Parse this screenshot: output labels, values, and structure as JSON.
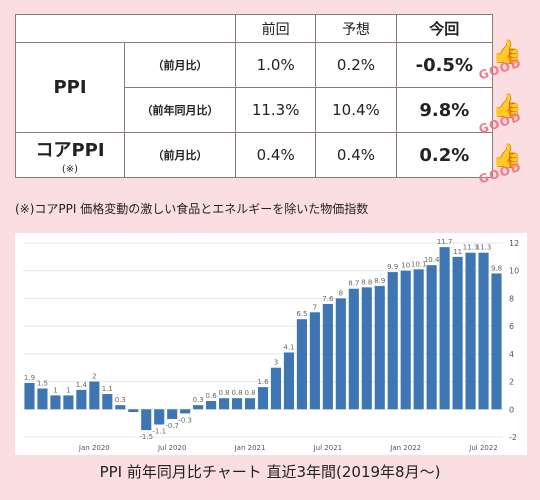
{
  "table": {
    "headers": [
      "前回",
      "予想",
      "今回"
    ],
    "rows": [
      {
        "label": "PPI",
        "sub": "（前月比）",
        "prev": "1.0%",
        "forecast": "0.2%",
        "actual": "-0.5%"
      },
      {
        "label": "",
        "sub": "（前年同月比）",
        "prev": "11.3%",
        "forecast": "10.4%",
        "actual": "9.8%"
      },
      {
        "label": "コアPPI",
        "label_note": "(※)",
        "sub": "（前月比）",
        "prev": "0.4%",
        "forecast": "0.4%",
        "actual": "0.2%"
      }
    ]
  },
  "good_badge": {
    "text": "GOOD",
    "icon": "thumbs-up-icon"
  },
  "footnote": "(※)コアPPI  価格変動の激しい食品とエネルギーを除いた物価指数",
  "caption": "PPI  前年同月比チャート 直近3年間(2019年8月～)",
  "chart_data": {
    "type": "bar",
    "title": "",
    "xlabel": "",
    "ylabel": "",
    "ylim": [
      -2,
      12
    ],
    "yticks": [
      -2,
      0,
      2,
      4,
      6,
      8,
      10,
      12
    ],
    "x_tick_labels": [
      {
        "index": 5,
        "text": "Jan 2020"
      },
      {
        "index": 11,
        "text": "Jul 2020"
      },
      {
        "index": 17,
        "text": "Jan 2021"
      },
      {
        "index": 23,
        "text": "Jul 2021"
      },
      {
        "index": 29,
        "text": "Jan 2022"
      },
      {
        "index": 35,
        "text": "Jul 2022"
      }
    ],
    "values": [
      1.9,
      1.5,
      1,
      1,
      1.4,
      2,
      1.1,
      0.3,
      -0.2,
      -1.5,
      -1.1,
      -0.7,
      -0.3,
      0.3,
      0.6,
      0.8,
      0.8,
      0.8,
      1.6,
      3,
      4.1,
      6.5,
      7,
      7.6,
      8,
      8.7,
      8.8,
      8.9,
      9.9,
      10,
      10.1,
      10.4,
      11.7,
      11,
      11.3,
      11.3,
      9.8
    ],
    "data_labels": [
      "1.9",
      "1.5",
      "1",
      "1",
      "1.4",
      "2",
      "1.1",
      "0.3",
      "",
      "-1.5",
      "-1.1",
      "-0.7",
      "-0.3",
      "0.3",
      "0.6",
      "0.8",
      "0.8",
      "0.8",
      "1.6",
      "3",
      "4.1",
      "6.5",
      "7",
      "7.6",
      "8",
      "8.7",
      "8.8",
      "8.9",
      "9.9",
      "10",
      "10.1",
      "10.4",
      "11.7",
      "11",
      "11.3",
      "11.3",
      "9.8"
    ],
    "colors": {
      "bar": "#3d76b2",
      "grid": "#e3e8ee",
      "tick": "#555555",
      "label": "#666666"
    }
  }
}
